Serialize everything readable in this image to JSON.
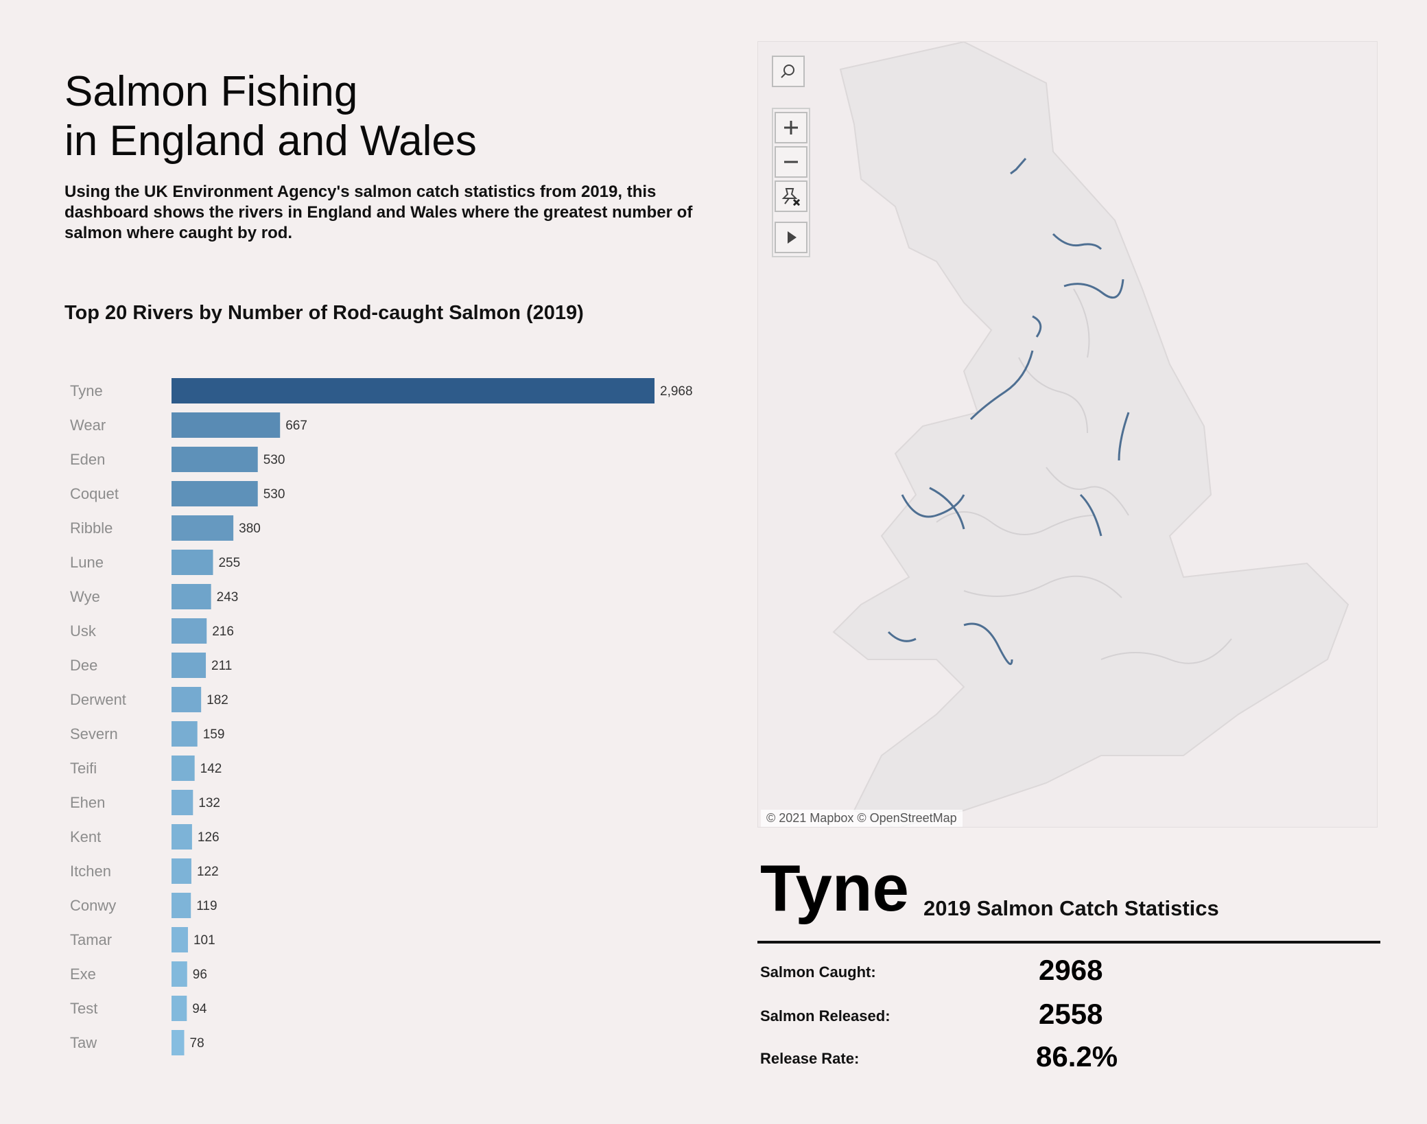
{
  "header": {
    "title_line1": "Salmon Fishing",
    "title_line2": "in England and Wales",
    "description": "Using the UK Environment Agency's salmon catch statistics from 2019, this dashboard shows the rivers in England and Wales where the greatest number of salmon where caught by rod."
  },
  "chart_data": {
    "type": "bar",
    "title": "Top 20 Rivers by Number of Rod-caught Salmon (2019)",
    "categories": [
      "Tyne",
      "Wear",
      "Eden",
      "Coquet",
      "Ribble",
      "Lune",
      "Wye",
      "Usk",
      "Dee",
      "Derwent",
      "Severn",
      "Teifi",
      "Ehen",
      "Kent",
      "Itchen",
      "Conwy",
      "Tamar",
      "Exe",
      "Test",
      "Taw"
    ],
    "values": [
      2968,
      667,
      530,
      530,
      380,
      255,
      243,
      216,
      211,
      182,
      159,
      142,
      132,
      126,
      122,
      119,
      101,
      96,
      94,
      78
    ],
    "value_labels": [
      "2,968",
      "667",
      "530",
      "530",
      "380",
      "255",
      "243",
      "216",
      "211",
      "182",
      "159",
      "142",
      "132",
      "126",
      "122",
      "119",
      "101",
      "96",
      "94",
      "78"
    ],
    "orientation": "horizontal",
    "xlim": [
      0,
      2968
    ],
    "grid": false,
    "color_dark": "#2e5b8a",
    "color_light": "#86bde0"
  },
  "map": {
    "attribution": "© 2021 Mapbox © OpenStreetMap",
    "tools": [
      "search-icon",
      "zoom-in-icon",
      "zoom-out-icon",
      "clear-pins-icon",
      "play-icon"
    ]
  },
  "detail": {
    "river_name": "Tyne",
    "subtitle": "2019 Salmon Catch Statistics",
    "stats": [
      {
        "label": "Salmon Caught:",
        "value": "2968"
      },
      {
        "label": "Salmon Released:",
        "value": "2558"
      },
      {
        "label": "Release Rate:",
        "value": "86.2%"
      }
    ]
  }
}
